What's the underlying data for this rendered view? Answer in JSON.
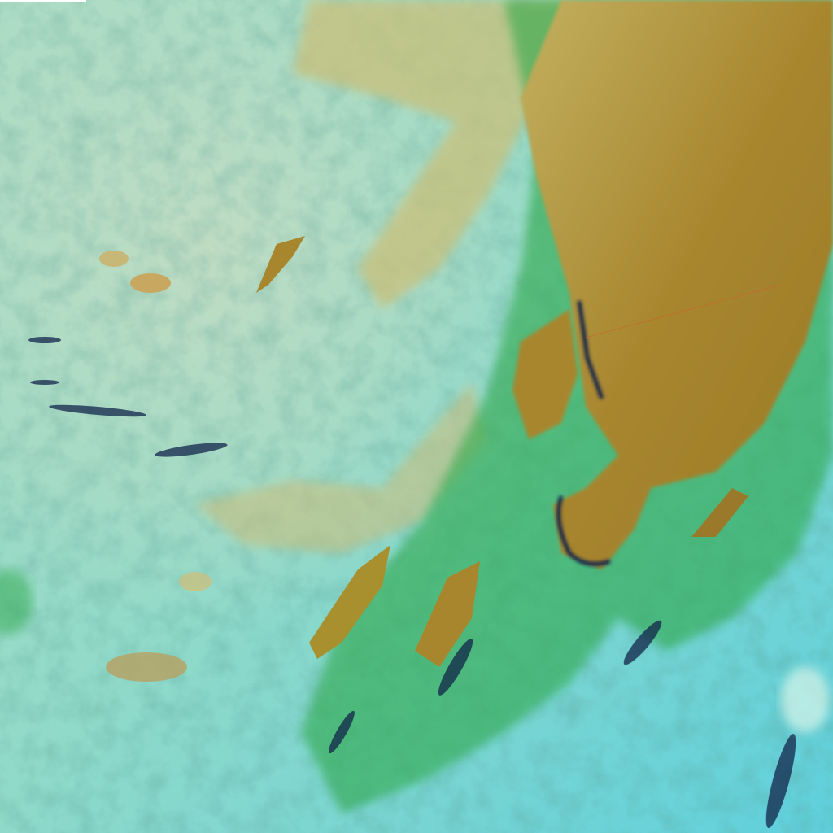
{
  "image": {
    "colors": {
      "background_cyan": "#7fd6d0",
      "haze_pale": "#b8dcc0",
      "thick_cloud_olive": "#a8862e",
      "cloud_edge_green": "#2fa84a",
      "shadow_navy": "#12244a",
      "high_cloud_yellow": "#c9c07a"
    }
  }
}
